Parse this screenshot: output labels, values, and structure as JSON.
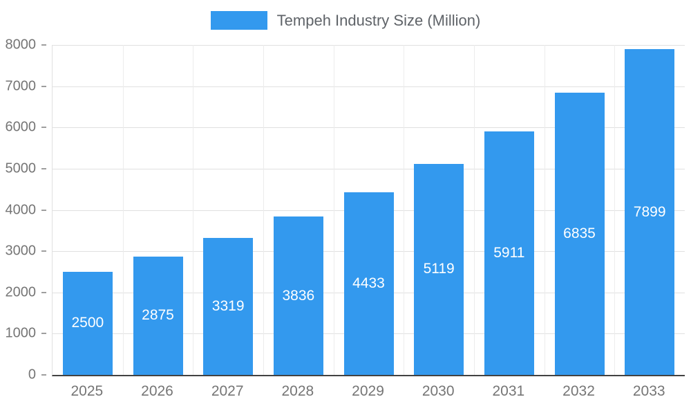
{
  "legend": {
    "label": "Tempeh Industry Size (Million)",
    "swatch_color": "#3399EE"
  },
  "chart_data": {
    "type": "bar",
    "title": "Tempeh Industry Size (Million)",
    "categories": [
      "2025",
      "2026",
      "2027",
      "2028",
      "2029",
      "2030",
      "2031",
      "2032",
      "2033"
    ],
    "values": [
      2500,
      2875,
      3319,
      3836,
      4433,
      5119,
      5911,
      6835,
      7899
    ],
    "xlabel": "",
    "ylabel": "",
    "ylim": [
      0,
      8000
    ],
    "ytick_step": 1000,
    "grid": "horizontal gridlines and vertical slot boundaries",
    "legend_position": "top-center",
    "bar_color": "#3399EE",
    "value_label_color": "#FFFFFF",
    "axis_label_color": "#757575",
    "gridline_color": "#E0E0E0",
    "baseline_color": "#424242"
  }
}
